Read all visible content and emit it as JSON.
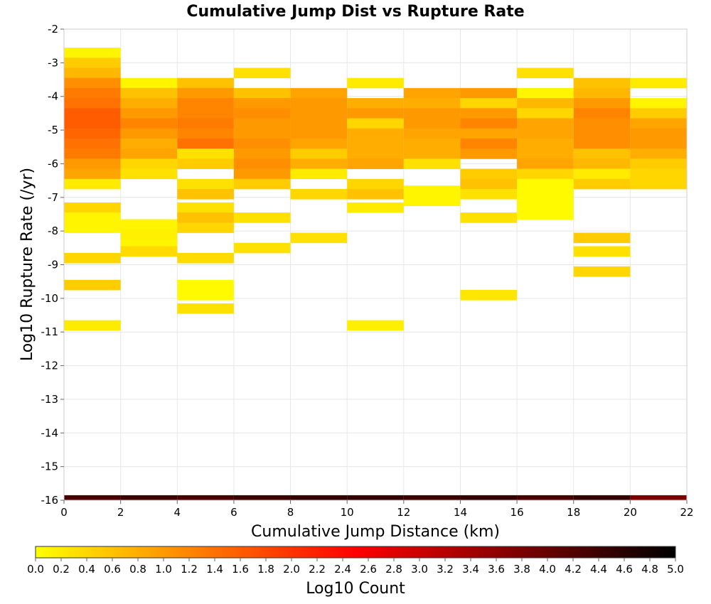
{
  "chart_data": {
    "type": "heatmap",
    "title": "Cumulative Jump Dist vs Rupture Rate",
    "xlabel": "Cumulative Jump Distance (km)",
    "ylabel": "Log10 Rupture Rate (/yr)",
    "xlim": [
      0,
      22
    ],
    "ylim": [
      -16,
      -2
    ],
    "x_ticks": [
      0,
      2,
      4,
      6,
      8,
      10,
      12,
      14,
      16,
      18,
      20,
      22
    ],
    "y_ticks": [
      -2,
      -3,
      -4,
      -5,
      -6,
      -7,
      -8,
      -9,
      -10,
      -11,
      -12,
      -13,
      -14,
      -15,
      -16
    ],
    "grid": true,
    "colorbar": {
      "label": "Log10 Count",
      "range": [
        0.0,
        5.0
      ],
      "ticks": [
        "0.0",
        "0.2",
        "0.4",
        "0.6",
        "0.8",
        "1.0",
        "1.2",
        "1.4",
        "1.6",
        "1.8",
        "2.0",
        "2.2",
        "2.4",
        "2.6",
        "2.8",
        "3.0",
        "3.2",
        "3.4",
        "3.6",
        "3.8",
        "4.0",
        "4.2",
        "4.4",
        "4.6",
        "4.8",
        "5.0"
      ],
      "colors": [
        "#ffff00",
        "#ff8000",
        "#ff0000",
        "#800000",
        "#000000"
      ]
    },
    "bin_width_x": 2,
    "bin_height_y": 0.3,
    "columns": [
      {
        "x": 0,
        "cells": [
          [
            -2.7,
            0.1
          ],
          [
            -3.0,
            0.5
          ],
          [
            -3.3,
            0.7
          ],
          [
            -3.6,
            1.1
          ],
          [
            -3.9,
            1.3
          ],
          [
            -4.2,
            1.4
          ],
          [
            -4.5,
            1.6
          ],
          [
            -4.8,
            1.6
          ],
          [
            -5.1,
            1.5
          ],
          [
            -5.4,
            1.4
          ],
          [
            -5.7,
            1.3
          ],
          [
            -6.0,
            1.0
          ],
          [
            -6.3,
            0.9
          ],
          [
            -6.6,
            0.2
          ],
          [
            -7.3,
            0.4
          ],
          [
            -7.6,
            0.1
          ],
          [
            -7.9,
            0.1
          ],
          [
            -8.8,
            0.4
          ],
          [
            -9.6,
            0.5
          ],
          [
            -10.8,
            0.2
          ]
        ]
      },
      {
        "x": 2,
        "cells": [
          [
            -3.6,
            0.1
          ],
          [
            -3.9,
            0.6
          ],
          [
            -4.2,
            0.8
          ],
          [
            -4.5,
            1.0
          ],
          [
            -4.8,
            1.2
          ],
          [
            -5.1,
            1.0
          ],
          [
            -5.4,
            0.8
          ],
          [
            -5.7,
            0.9
          ],
          [
            -6.0,
            0.4
          ],
          [
            -6.3,
            0.3
          ],
          [
            -7.8,
            0.1
          ],
          [
            -8.1,
            0.15
          ],
          [
            -8.4,
            0.1
          ],
          [
            -8.6,
            0.35
          ]
        ]
      },
      {
        "x": 4,
        "cells": [
          [
            -3.6,
            0.6
          ],
          [
            -3.9,
            1.0
          ],
          [
            -4.2,
            1.2
          ],
          [
            -4.5,
            1.2
          ],
          [
            -4.8,
            1.3
          ],
          [
            -5.1,
            1.2
          ],
          [
            -5.4,
            1.4
          ],
          [
            -5.7,
            0.3
          ],
          [
            -6.0,
            0.5
          ],
          [
            -6.6,
            0.3
          ],
          [
            -6.9,
            0.6
          ],
          [
            -7.3,
            0.3
          ],
          [
            -7.6,
            0.6
          ],
          [
            -7.9,
            0.4
          ],
          [
            -8.8,
            0.35
          ],
          [
            -9.6,
            0.05
          ],
          [
            -9.9,
            0.05
          ],
          [
            -10.3,
            0.3
          ]
        ]
      },
      {
        "x": 6,
        "cells": [
          [
            -3.3,
            0.3
          ],
          [
            -3.9,
            0.6
          ],
          [
            -4.2,
            1.0
          ],
          [
            -4.5,
            1.1
          ],
          [
            -4.8,
            1.0
          ],
          [
            -5.1,
            1.0
          ],
          [
            -5.4,
            1.1
          ],
          [
            -5.7,
            1.0
          ],
          [
            -6.0,
            1.1
          ],
          [
            -6.3,
            1.0
          ],
          [
            -6.6,
            0.5
          ],
          [
            -7.6,
            0.3
          ],
          [
            -8.5,
            0.3
          ]
        ]
      },
      {
        "x": 8,
        "cells": [
          [
            -3.9,
            0.9
          ],
          [
            -4.2,
            1.0
          ],
          [
            -4.5,
            1.0
          ],
          [
            -4.8,
            1.0
          ],
          [
            -5.1,
            1.0
          ],
          [
            -5.4,
            0.9
          ],
          [
            -5.7,
            0.5
          ],
          [
            -6.0,
            0.8
          ],
          [
            -6.3,
            0.2
          ],
          [
            -6.9,
            0.4
          ],
          [
            -8.2,
            0.3
          ]
        ]
      },
      {
        "x": 10,
        "cells": [
          [
            -3.6,
            0.2
          ],
          [
            -4.2,
            0.8
          ],
          [
            -4.5,
            1.0
          ],
          [
            -4.8,
            0.4
          ],
          [
            -5.1,
            0.8
          ],
          [
            -5.4,
            0.8
          ],
          [
            -5.7,
            0.8
          ],
          [
            -6.0,
            0.9
          ],
          [
            -6.6,
            0.4
          ],
          [
            -6.9,
            0.6
          ],
          [
            -7.3,
            0.2
          ],
          [
            -10.8,
            0.15
          ]
        ]
      },
      {
        "x": 12,
        "cells": [
          [
            -3.9,
            0.9
          ],
          [
            -4.2,
            0.8
          ],
          [
            -4.5,
            1.0
          ],
          [
            -4.8,
            1.0
          ],
          [
            -5.1,
            0.9
          ],
          [
            -5.4,
            0.8
          ],
          [
            -5.7,
            0.8
          ],
          [
            -6.0,
            0.3
          ],
          [
            -6.8,
            0.1
          ],
          [
            -7.1,
            0.1
          ]
        ]
      },
      {
        "x": 14,
        "cells": [
          [
            -3.9,
            1.0
          ],
          [
            -4.2,
            0.4
          ],
          [
            -4.5,
            1.0
          ],
          [
            -4.8,
            1.2
          ],
          [
            -5.1,
            0.9
          ],
          [
            -5.4,
            1.2
          ],
          [
            -5.7,
            1.0
          ],
          [
            -6.3,
            0.5
          ],
          [
            -6.6,
            0.6
          ],
          [
            -6.9,
            0.3
          ],
          [
            -7.6,
            0.3
          ],
          [
            -9.9,
            0.25
          ]
        ]
      },
      {
        "x": 16,
        "cells": [
          [
            -3.3,
            0.3
          ],
          [
            -3.9,
            0.1
          ],
          [
            -4.2,
            0.7
          ],
          [
            -4.5,
            0.4
          ],
          [
            -4.8,
            0.9
          ],
          [
            -5.1,
            0.9
          ],
          [
            -5.4,
            0.8
          ],
          [
            -5.7,
            0.8
          ],
          [
            -6.0,
            0.9
          ],
          [
            -6.3,
            0.4
          ],
          [
            -6.6,
            0.05
          ],
          [
            -6.9,
            0.05
          ],
          [
            -7.2,
            0.05
          ],
          [
            -7.5,
            0.05
          ]
        ]
      },
      {
        "x": 18,
        "cells": [
          [
            -3.6,
            0.6
          ],
          [
            -3.9,
            0.7
          ],
          [
            -4.2,
            1.0
          ],
          [
            -4.5,
            1.2
          ],
          [
            -4.8,
            1.1
          ],
          [
            -5.1,
            1.1
          ],
          [
            -5.4,
            1.1
          ],
          [
            -5.7,
            0.6
          ],
          [
            -6.0,
            0.7
          ],
          [
            -6.3,
            0.2
          ],
          [
            -6.6,
            0.5
          ],
          [
            -8.2,
            0.5
          ],
          [
            -8.6,
            0.3
          ],
          [
            -9.2,
            0.4
          ]
        ]
      },
      {
        "x": 20,
        "cells": [
          [
            -3.6,
            0.2
          ],
          [
            -4.2,
            0.1
          ],
          [
            -4.5,
            0.5
          ],
          [
            -4.8,
            0.9
          ],
          [
            -5.1,
            1.0
          ],
          [
            -5.4,
            1.0
          ],
          [
            -5.7,
            0.8
          ],
          [
            -6.0,
            0.5
          ],
          [
            -6.3,
            0.4
          ],
          [
            -6.6,
            0.4
          ]
        ]
      }
    ],
    "bottom_row": {
      "y": -16,
      "cells": [
        [
          0,
          4.3
        ],
        [
          2,
          4.4
        ],
        [
          4,
          4.3
        ],
        [
          6,
          4.4
        ],
        [
          8,
          4.5
        ],
        [
          10,
          4.5
        ],
        [
          12,
          4.4
        ],
        [
          14,
          4.5
        ],
        [
          16,
          4.3
        ],
        [
          18,
          4.5
        ],
        [
          20,
          3.8
        ]
      ]
    }
  }
}
